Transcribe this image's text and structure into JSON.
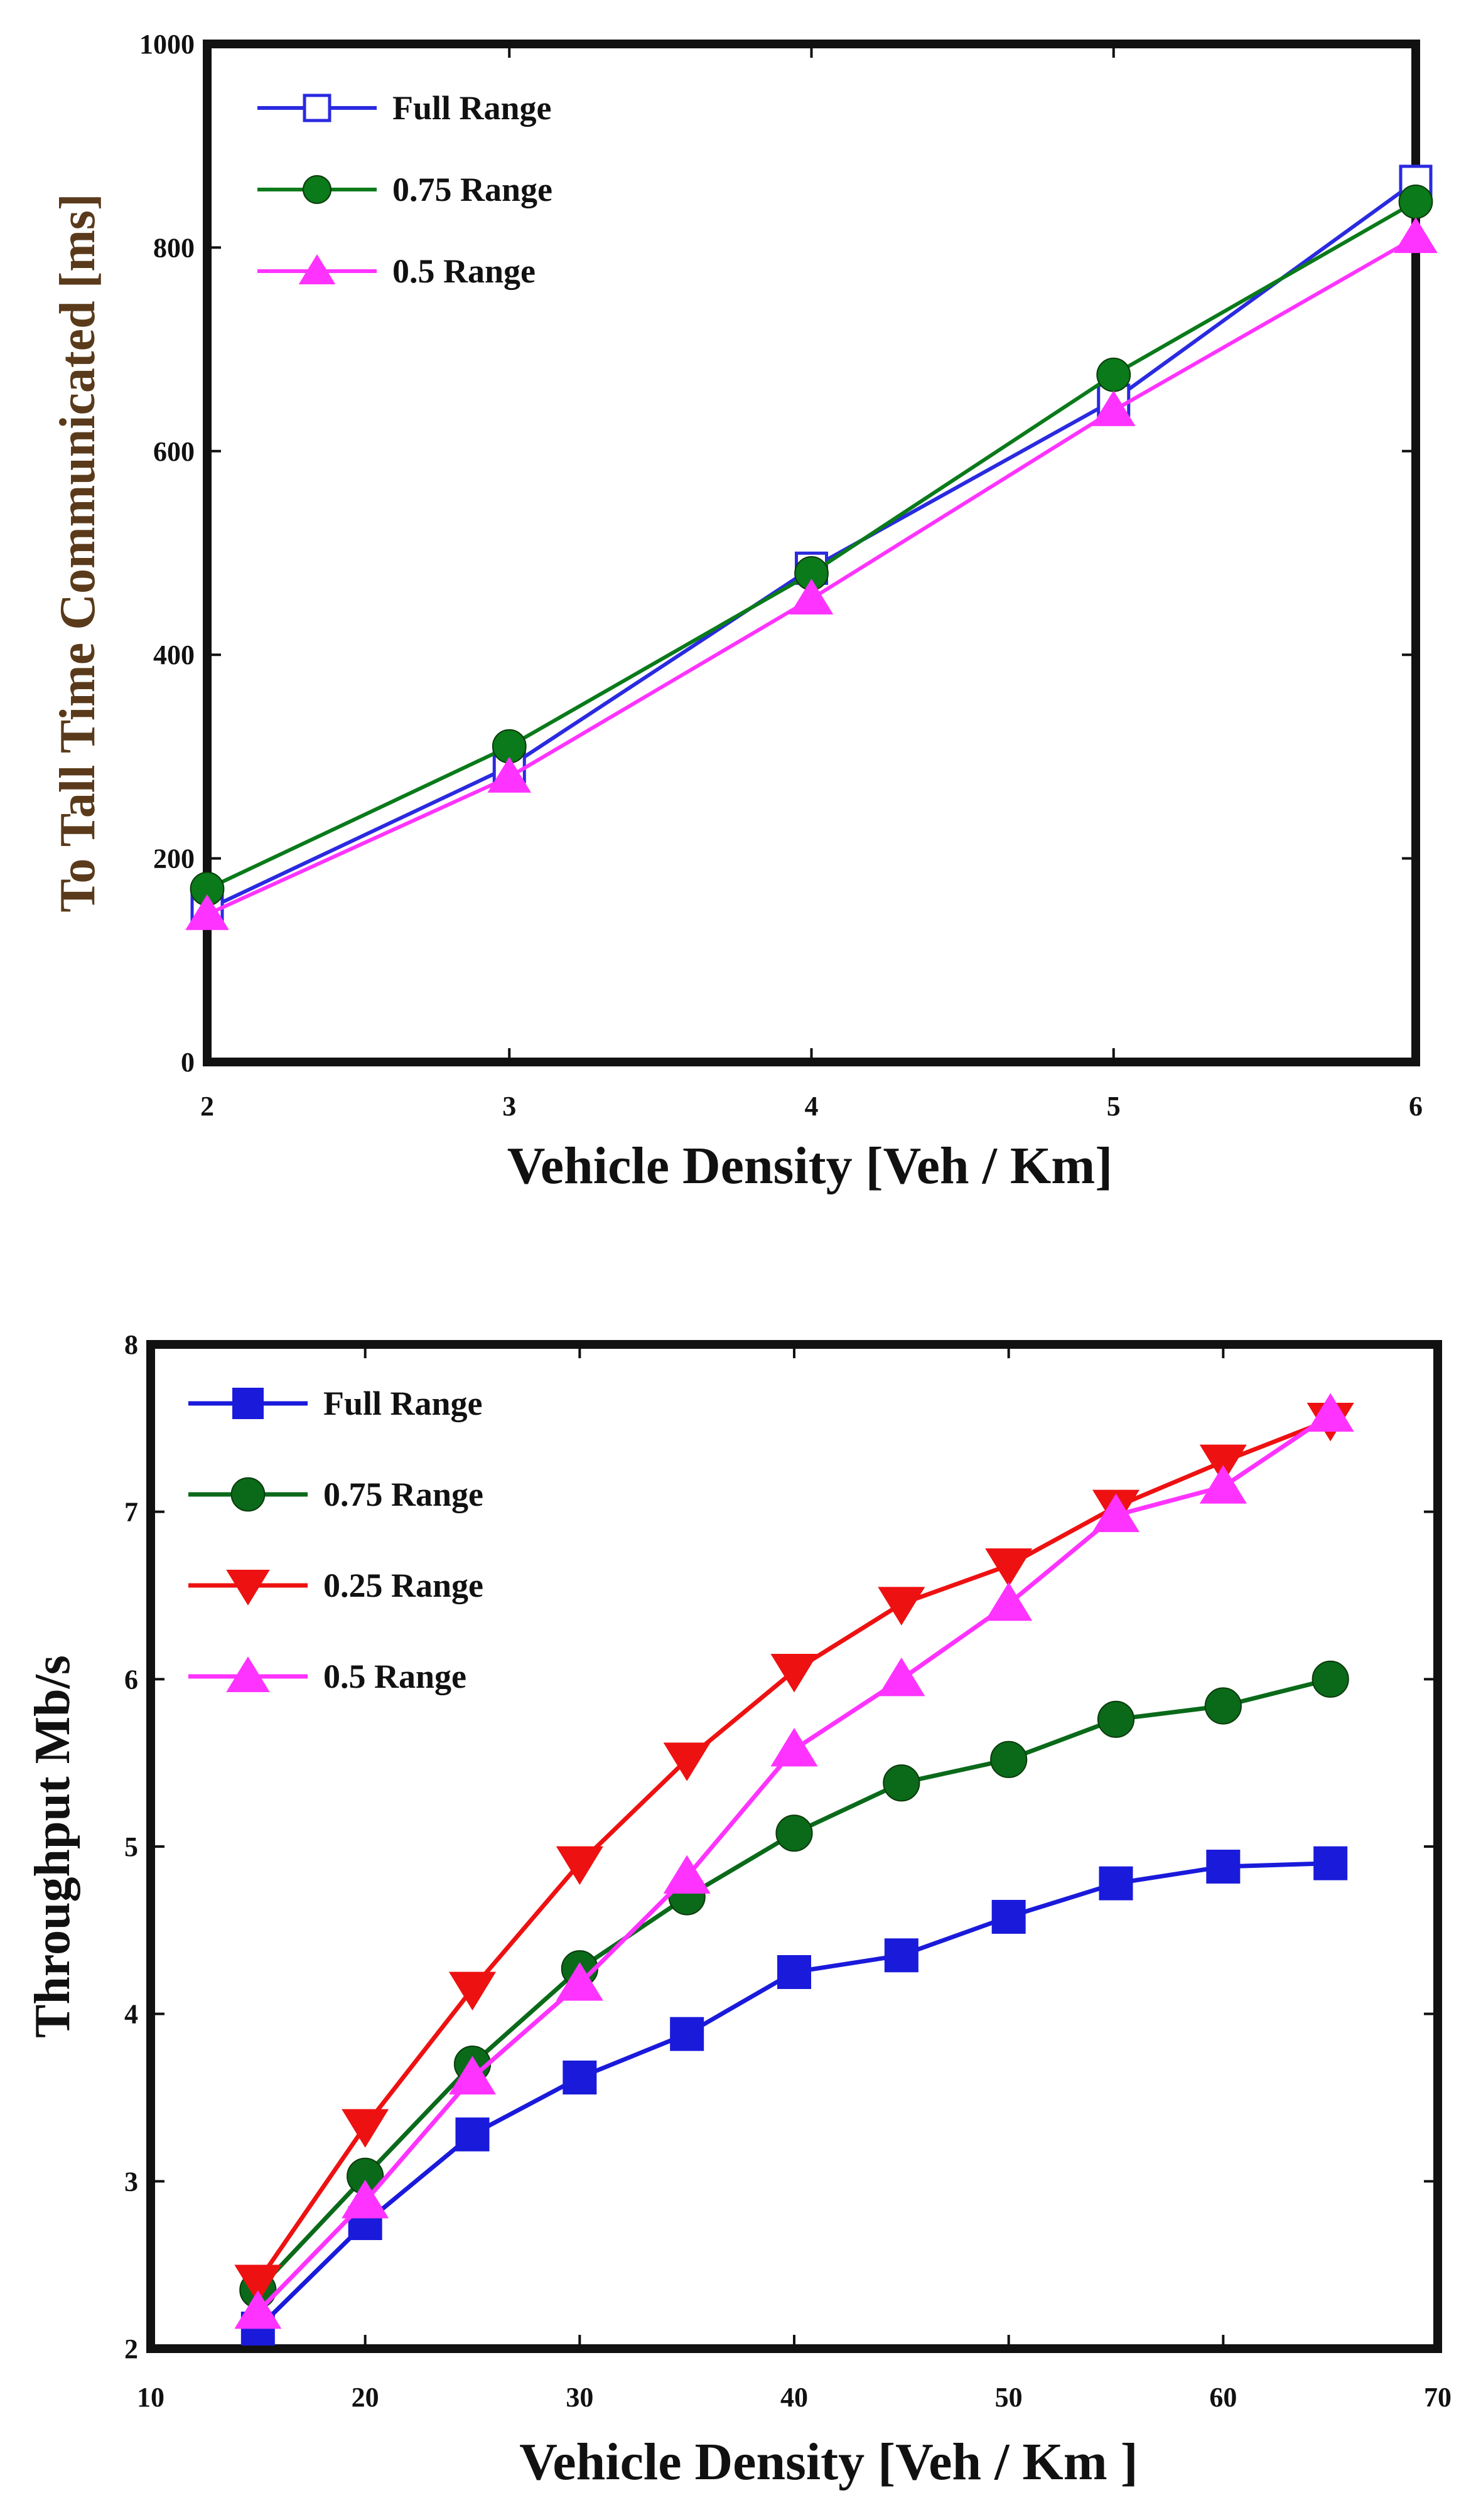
{
  "chart_data": [
    {
      "type": "line",
      "title": "",
      "xlabel": "Vehicle Density [Veh / Km]",
      "ylabel": "To Tall Time Communicated [ms]",
      "xlim": [
        2,
        6
      ],
      "ylim": [
        0,
        1000
      ],
      "xticks": [
        "2",
        "3",
        "4",
        "5",
        "6"
      ],
      "yticks": [
        "0",
        "200",
        "400",
        "600",
        "800",
        "1000"
      ],
      "legend_position": "top-left",
      "x": [
        2,
        3,
        4,
        5,
        6
      ],
      "series": [
        {
          "name": "Full Range",
          "color": "#2a2ae0",
          "marker": "square-open",
          "values": [
            150,
            290,
            485,
            650,
            865
          ]
        },
        {
          "name": "0.75 Range",
          "color": "#0a7a1a",
          "marker": "circle",
          "values": [
            170,
            310,
            480,
            675,
            845
          ]
        },
        {
          "name": "0.5 Range",
          "color": "#ff33ff",
          "marker": "triangle-up",
          "values": [
            145,
            280,
            455,
            640,
            810
          ]
        }
      ]
    },
    {
      "type": "line",
      "title": "",
      "xlabel": "Vehicle Density [Veh / Km ]",
      "ylabel": "Throughput Mb/s",
      "xlim": [
        10,
        70
      ],
      "ylim": [
        2,
        8
      ],
      "xticks": [
        "10",
        "20",
        "30",
        "40",
        "50",
        "60",
        "70"
      ],
      "yticks": [
        "2",
        "3",
        "4",
        "5",
        "6",
        "7",
        "8"
      ],
      "legend_position": "top-left",
      "x": [
        15,
        20,
        25,
        30,
        35,
        40,
        45,
        50,
        55,
        60,
        65
      ],
      "series": [
        {
          "name": "Full Range",
          "color": "#1a1adb",
          "marker": "square",
          "values": [
            2.12,
            2.75,
            3.28,
            3.62,
            3.88,
            4.25,
            4.35,
            4.58,
            4.78,
            4.88,
            4.9
          ]
        },
        {
          "name": "0.75 Range",
          "color": "#0a6a1a",
          "marker": "circle",
          "values": [
            2.35,
            3.03,
            3.7,
            4.27,
            4.7,
            5.08,
            5.38,
            5.52,
            5.76,
            5.84,
            6.0
          ]
        },
        {
          "name": "0.25 Range",
          "color": "#ee1111",
          "marker": "triangle-down",
          "values": [
            2.4,
            3.33,
            4.15,
            4.9,
            5.52,
            6.05,
            6.45,
            6.68,
            7.03,
            7.3,
            7.55
          ]
        },
        {
          "name": "0.5 Range",
          "color": "#ff33ff",
          "marker": "triangle-up",
          "values": [
            2.22,
            2.88,
            3.62,
            4.18,
            4.82,
            5.58,
            6.0,
            6.45,
            6.98,
            7.15,
            7.58
          ]
        }
      ]
    }
  ]
}
